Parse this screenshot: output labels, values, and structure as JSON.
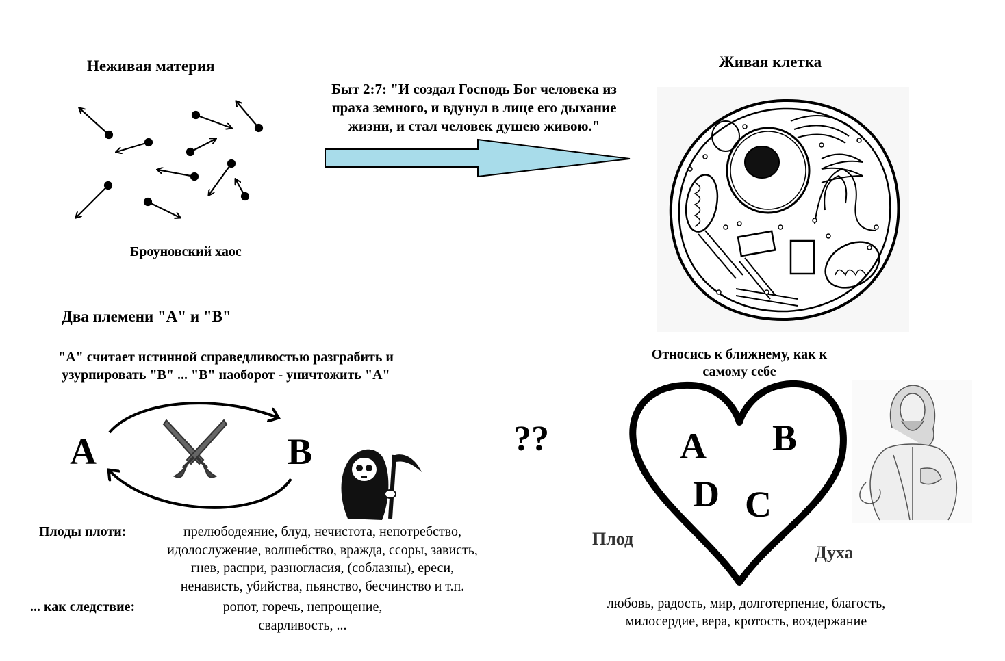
{
  "matter": {
    "title": "Неживая материя",
    "caption": "Броуновский хаос"
  },
  "scripture": {
    "line1": "Быт 2:7: \"И создал Господь Бог человека из",
    "line2": "праха земного, и вдунул в лице его дыхание",
    "line3": "жизни, и стал человек душею живою.\""
  },
  "cell": {
    "title": "Живая клетка"
  },
  "tribes": {
    "title": "Два племени \"А\" и \"В\"",
    "desc_line1": "\"А\" считает истинной справедливостью разграбить и",
    "desc_line2": "узурпировать \"В\" ... \"В\" наоборот - уничтожить \"А\"",
    "letter_a": "A",
    "letter_b": "B"
  },
  "question": "??",
  "love": {
    "title_line1": "Относись к ближнему, как к",
    "title_line2": "самому себе",
    "letters": [
      "A",
      "B",
      "D",
      "C"
    ],
    "fruit_left": "Плод",
    "fruit_right": "Духа",
    "virtues_line1": "любовь, радость, мир, долготерпение, благость,",
    "virtues_line2": "милосердие, вера, кротость, воздержание"
  },
  "flesh": {
    "label": "Плоды плоти:",
    "line1": "прелюбодеяние, блуд, нечистота, непотребство,",
    "line2": "идолослужение, волшебство, вражда, ссоры, зависть,",
    "line3": "гнев, распри, разногласия, (соблазны), ереси,",
    "line4": "ненависть, убийства, пьянство, бесчинство и т.п.",
    "consequence_label": "... как следствие:",
    "consequence_line1": "ропот, горечь, непрощение,",
    "consequence_line2": "сварливость, ..."
  },
  "colors": {
    "arrow_fill": "#a8dcea",
    "ink": "#000000"
  }
}
